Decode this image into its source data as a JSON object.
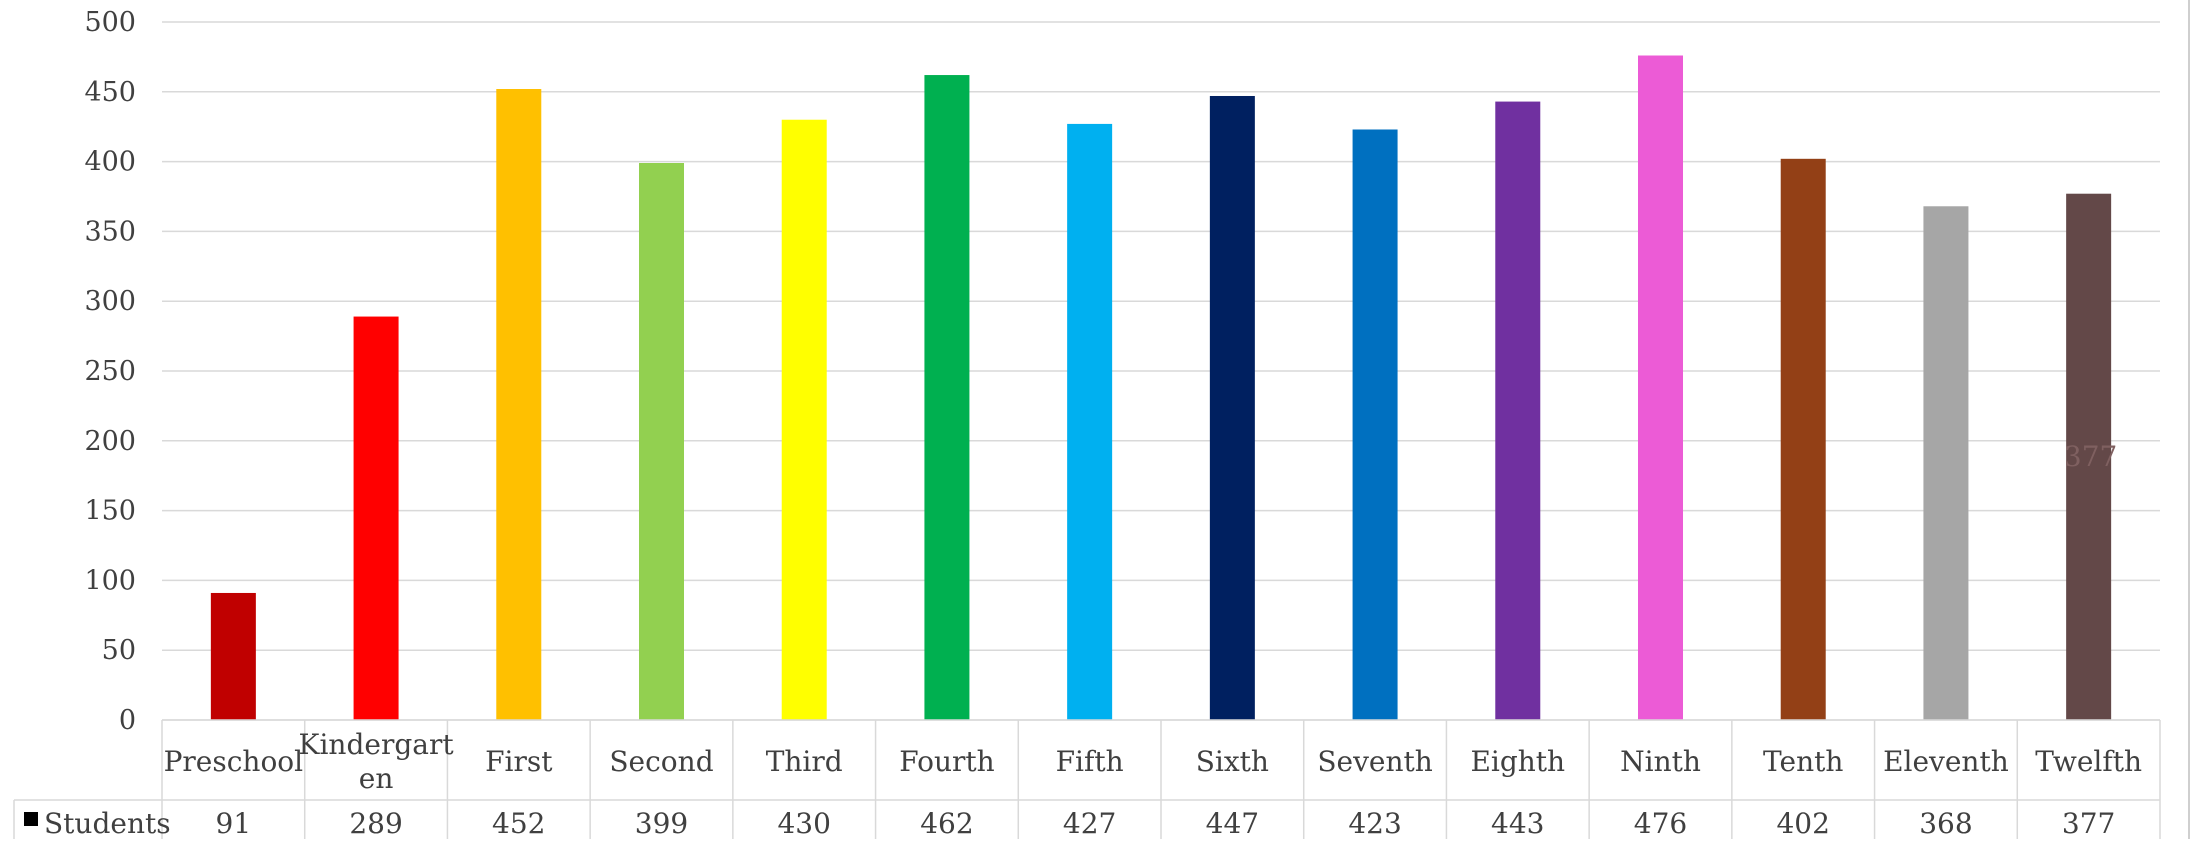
{
  "chart_data": {
    "type": "bar",
    "title": "",
    "xlabel": "",
    "ylabel": "",
    "ylim": [
      0,
      500
    ],
    "yticks": [
      0,
      50,
      100,
      150,
      200,
      250,
      300,
      350,
      400,
      450,
      500
    ],
    "grid": true,
    "legend": "data-table-left",
    "categories": [
      "Preschool",
      "Kindergarten",
      "First",
      "Second",
      "Third",
      "Fourth",
      "Fifth",
      "Sixth",
      "Seventh",
      "Eighth",
      "Ninth",
      "Tenth",
      "Eleventh",
      "Twelfth"
    ],
    "series": [
      {
        "name": "Students",
        "values": [
          91,
          289,
          452,
          399,
          430,
          462,
          427,
          447,
          423,
          443,
          476,
          402,
          368,
          377
        ]
      }
    ],
    "bar_colors": [
      "#C00000",
      "#FF0000",
      "#FFC000",
      "#92D050",
      "#FFFF00",
      "#00B050",
      "#00B0F0",
      "#002060",
      "#0070C0",
      "#7030A0",
      "#EC5BD6",
      "#934016",
      "#A6A6A6",
      "#634848"
    ],
    "stray_label": {
      "category": "Twelfth",
      "text": "377",
      "color": "#7F6060"
    }
  }
}
